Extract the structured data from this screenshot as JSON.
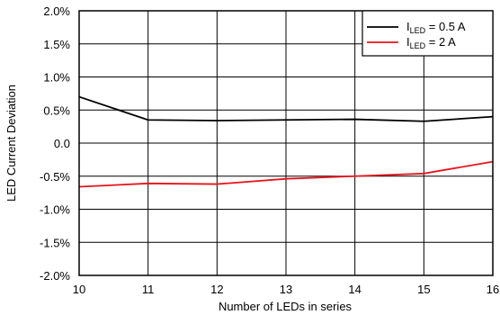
{
  "chart_data": {
    "type": "line",
    "xlabel": "Number of LEDs in series",
    "ylabel": "LED Current Deviation",
    "x": [
      10,
      11,
      12,
      13,
      14,
      15,
      16
    ],
    "xlim": [
      10,
      16
    ],
    "ylim": [
      -2.0,
      2.0
    ],
    "xticks": [
      "10",
      "11",
      "12",
      "13",
      "14",
      "15",
      "16"
    ],
    "yticks": [
      "2.0%",
      "1.5%",
      "1.0%",
      "0.5%",
      "0.0",
      "-0.5%",
      "-1.0%",
      "-1.5%",
      "-2.0%"
    ],
    "grid": true,
    "legend_position": "top-right",
    "series": [
      {
        "name_main": "I",
        "name_sub": "LED",
        "name_rest": " = 0.5 A",
        "color": "#000000",
        "values": [
          0.7,
          0.35,
          0.34,
          0.35,
          0.36,
          0.33,
          0.4
        ]
      },
      {
        "name_main": "I",
        "name_sub": "LED",
        "name_rest": " = 2 A",
        "color": "#e8141b",
        "values": [
          -0.66,
          -0.61,
          -0.62,
          -0.54,
          -0.5,
          -0.46,
          -0.28
        ]
      }
    ]
  }
}
